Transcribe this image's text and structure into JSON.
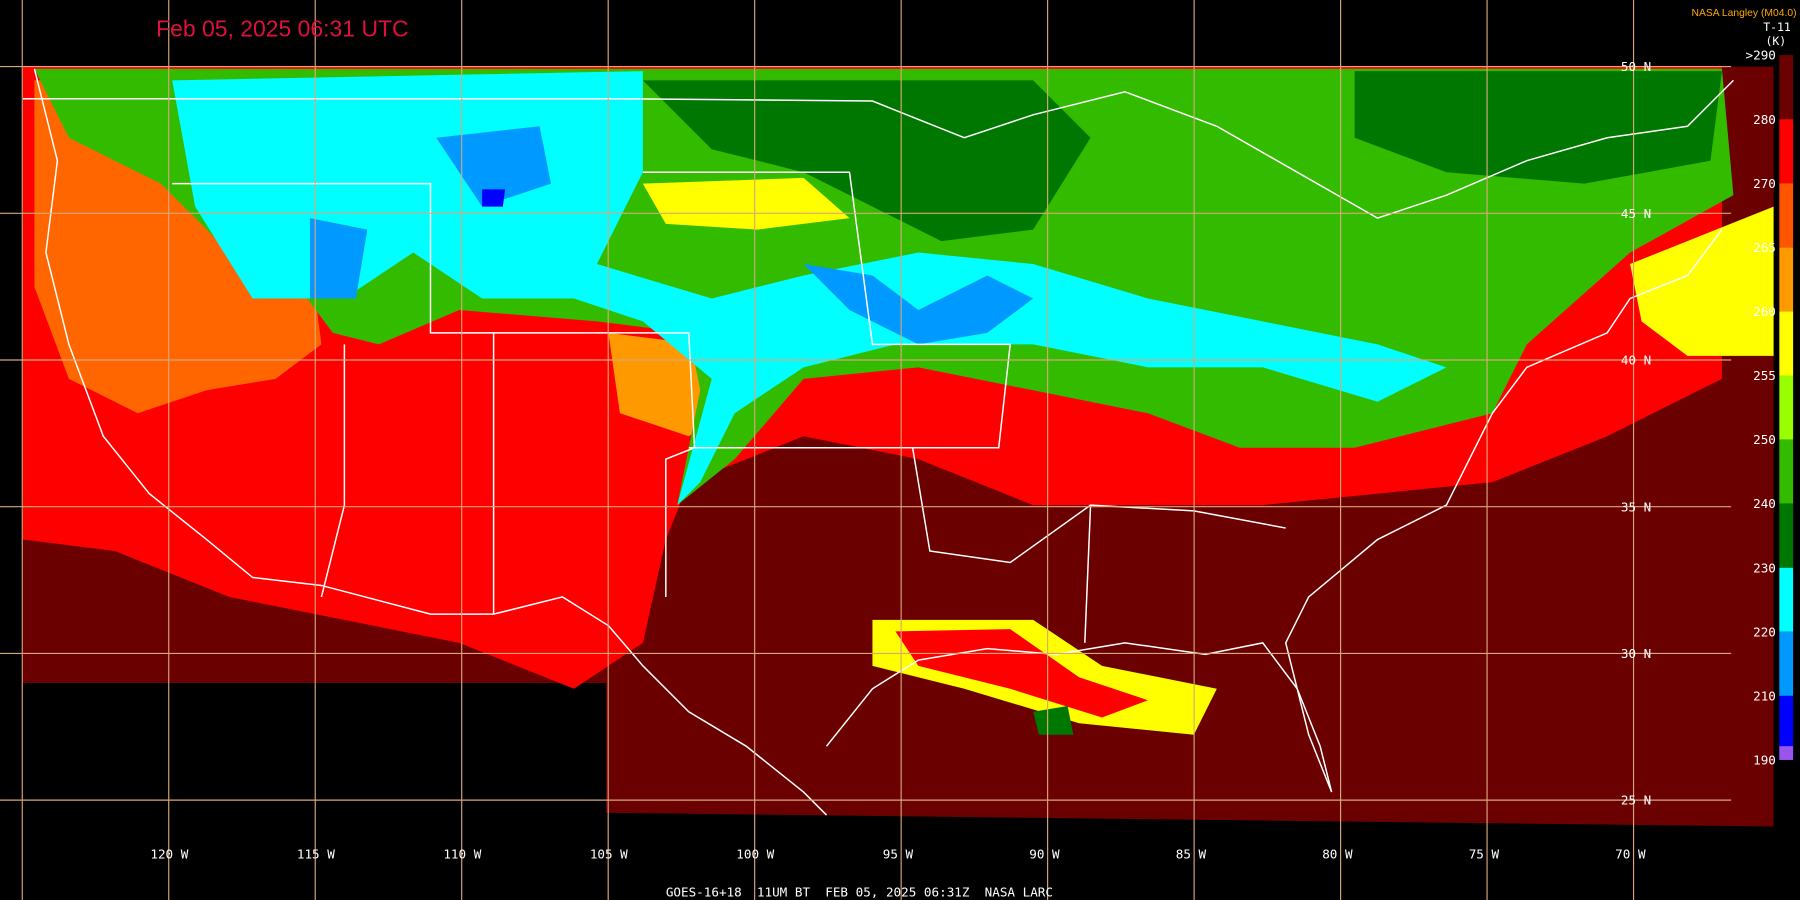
{
  "title": "Feb 05, 2025 06:31 UTC",
  "credit": "NASA Langley (M04.0)",
  "product": "T-11",
  "unit": "(K)",
  "footer": "GOES-16+18  11UM BT  FEB 05, 2025 06:31Z  NASA LARC",
  "latitude_labels": [
    "50 N",
    "45 N",
    "40 N",
    "35 N",
    "30 N",
    "25 N"
  ],
  "longitude_labels": [
    "120 W",
    "115 W",
    "110 W",
    "105 W",
    "100 W",
    "95 W",
    "90 W",
    "85 W",
    "80 W",
    "75 W",
    "70 W"
  ],
  "colorbar": [
    {
      "label": ">290",
      "color": "#6b0000"
    },
    {
      "label": "280",
      "color": "#ff0000"
    },
    {
      "label": "270",
      "color": "#ff5500"
    },
    {
      "label": "265",
      "color": "#ff9900"
    },
    {
      "label": "260",
      "color": "#ffff00"
    },
    {
      "label": "255",
      "color": "#99ff00"
    },
    {
      "label": "250",
      "color": "#33bb00"
    },
    {
      "label": "240",
      "color": "#007700"
    },
    {
      "label": "230",
      "color": "#00ffff"
    },
    {
      "label": "220",
      "color": "#0099ff"
    },
    {
      "label": "210",
      "color": "#0000ff"
    },
    {
      "label": "190",
      "color": "#9955ee"
    }
  ]
}
